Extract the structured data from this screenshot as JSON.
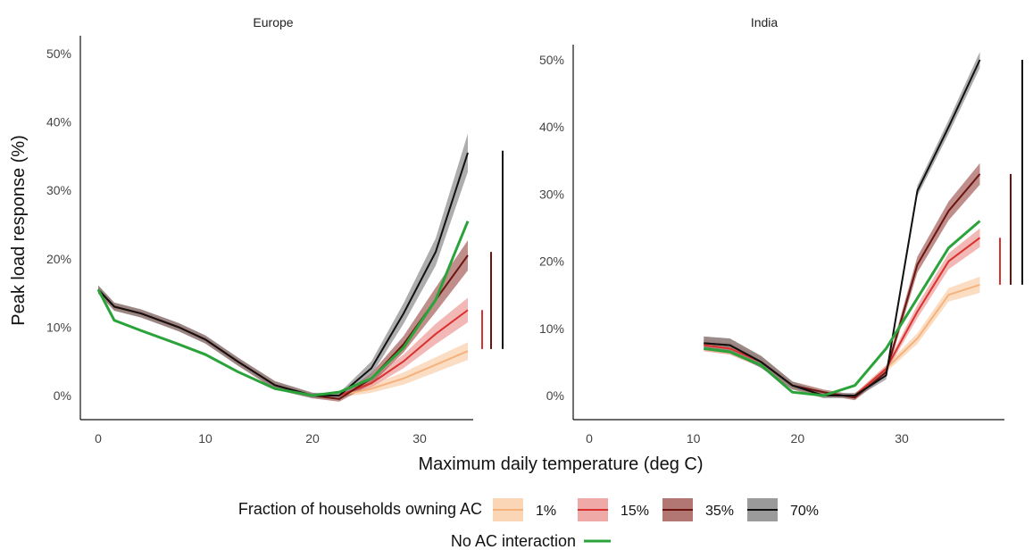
{
  "legend": {
    "title": "Fraction of households owning AC",
    "no_ac_label": "No AC interaction"
  },
  "colors": {
    "ac_1": "#f5b27c",
    "ac_15": "#d9312f",
    "ac_35": "#6b1410",
    "ac_70": "#111111",
    "no_ac": "#2aa33a",
    "band_1": "#f9cfaa",
    "band_15": "#ec9a96",
    "band_35": "#a45e5a",
    "band_70": "#8a8a8a"
  },
  "chart_data": {
    "type": "line",
    "xlabel": "Maximum daily temperature (deg C)",
    "ylabel": "Peak load response (%)",
    "grid": false,
    "legend_position": "bottom",
    "panels": [
      {
        "title": "Europe",
        "xlim": [
          -2,
          35
        ],
        "ylim": [
          -2,
          52
        ],
        "x_ticks": [
          "0",
          "10",
          "20",
          "30"
        ],
        "y_ticks": [
          "0%",
          "10%",
          "20%",
          "30%",
          "40%",
          "50%"
        ],
        "x": [
          0,
          1.5,
          4,
          7.5,
          10,
          13,
          16.5,
          20,
          22.5,
          25.5,
          28.5,
          31.5,
          34.5
        ],
        "series": [
          {
            "name": "1%",
            "values": [
              15.5,
              13,
              12,
              10,
              8.2,
              5,
              1.5,
              0,
              0,
              1,
              2.5,
              4.5,
              6.5
            ],
            "band": [
              0.5,
              0.5,
              0.5,
              0.5,
              0.5,
              0.5,
              0.5,
              0.3,
              0.3,
              0.6,
              0.9,
              1.1,
              1.3
            ]
          },
          {
            "name": "15%",
            "values": [
              15.5,
              13,
              12,
              10,
              8.2,
              5,
              1.5,
              0,
              0,
              1.8,
              5,
              9,
              12.5
            ],
            "band": [
              0.5,
              0.5,
              0.5,
              0.5,
              0.5,
              0.5,
              0.5,
              0.3,
              0.3,
              0.6,
              1,
              1.5,
              1.8
            ]
          },
          {
            "name": "35%",
            "values": [
              15.5,
              13,
              12,
              10,
              8.2,
              5,
              1.5,
              0,
              -0.5,
              2.5,
              7.5,
              14,
              20.5
            ],
            "band": [
              0.6,
              0.6,
              0.6,
              0.6,
              0.6,
              0.6,
              0.6,
              0.4,
              0.4,
              0.8,
              1.2,
              1.8,
              2.2
            ]
          },
          {
            "name": "70%",
            "values": [
              15.5,
              13,
              12,
              10,
              8.2,
              5,
              1.5,
              0,
              0,
              4,
              12,
              21,
              35.5
            ],
            "band": [
              0.6,
              0.6,
              0.6,
              0.6,
              0.6,
              0.6,
              0.6,
              0.4,
              0.4,
              1,
              1.5,
              2,
              2.8
            ]
          }
        ],
        "no_ac": {
          "x": [
            0,
            1.5,
            4,
            7.5,
            10,
            13,
            16.5,
            20,
            22.5,
            25.5,
            28.5,
            31.5,
            34.5
          ],
          "values": [
            15.5,
            11,
            9.5,
            7.5,
            6,
            3.5,
            1,
            0,
            0.5,
            2.5,
            7,
            14,
            25.5
          ]
        },
        "range_bars": [
          {
            "name": "15%",
            "min": 6.8,
            "max": 12.5
          },
          {
            "name": "35%",
            "min": 6.8,
            "max": 21
          },
          {
            "name": "70%",
            "min": 6.8,
            "max": 35.8
          }
        ]
      },
      {
        "title": "India",
        "xlim": [
          -2,
          38
        ],
        "ylim": [
          -2,
          52
        ],
        "x_ticks": [
          "0",
          "10",
          "20",
          "30"
        ],
        "y_ticks": [
          "0%",
          "10%",
          "20%",
          "30%",
          "40%",
          "50%"
        ],
        "x": [
          11,
          13.5,
          16.5,
          19.5,
          22.5,
          25.5,
          28.5,
          31.5,
          34.5,
          37.5
        ],
        "series": [
          {
            "name": "1%",
            "values": [
              7.5,
              7,
              5,
              1.5,
              0,
              0,
              4,
              8.5,
              15,
              16.5
            ],
            "band": [
              0.9,
              0.9,
              0.8,
              0.5,
              0.3,
              0.3,
              0.5,
              0.8,
              1,
              1.2
            ]
          },
          {
            "name": "15%",
            "values": [
              7.5,
              7,
              5,
              1.5,
              0,
              0,
              4,
              12.5,
              20,
              23.5
            ],
            "band": [
              0.9,
              0.9,
              0.8,
              0.5,
              0.3,
              0.3,
              0.5,
              1,
              1.2,
              1.4
            ]
          },
          {
            "name": "35%",
            "values": [
              7.8,
              7.5,
              5,
              1.5,
              0.5,
              -0.3,
              3.5,
              19.5,
              27.5,
              33
            ],
            "band": [
              1,
              1,
              0.9,
              0.6,
              0.4,
              0.4,
              0.6,
              1.2,
              1.4,
              1.6
            ]
          },
          {
            "name": "70%",
            "values": [
              7.8,
              7.5,
              5,
              1.5,
              0,
              0,
              3,
              30.5,
              40,
              50
            ],
            "band": [
              1,
              1,
              0.9,
              0.6,
              0.4,
              0.4,
              0.6,
              0.8,
              1,
              1.2
            ]
          }
        ],
        "no_ac": {
          "x": [
            11,
            13.5,
            16.5,
            19.5,
            22.5,
            25.5,
            28.5,
            31.5,
            34.5,
            37.5
          ],
          "values": [
            7,
            6.5,
            4.5,
            0.5,
            0,
            1.5,
            7,
            14.5,
            22,
            26
          ]
        },
        "range_bars": [
          {
            "name": "15%",
            "min": 16.5,
            "max": 23.5
          },
          {
            "name": "35%",
            "min": 16.5,
            "max": 33
          },
          {
            "name": "70%",
            "min": 16.5,
            "max": 50
          }
        ]
      }
    ]
  }
}
